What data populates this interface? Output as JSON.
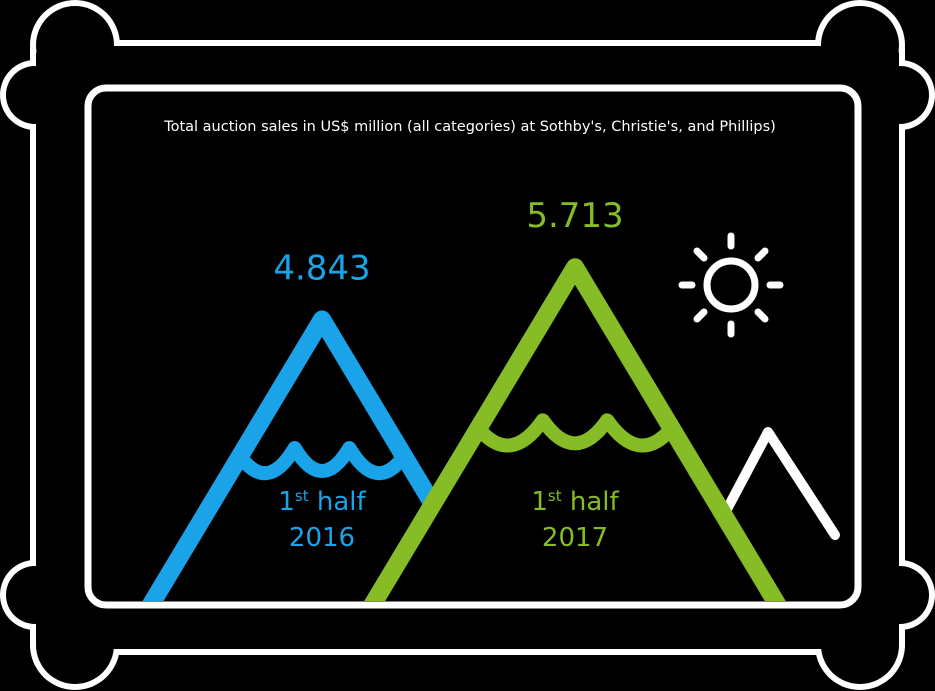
{
  "chart_data": {
    "type": "mountain",
    "title": "Total auction sales in US$ million (all categories) at Sothby's, Christie's, and Phillips)",
    "categories": [
      "1st half 2016",
      "1st half 2017"
    ],
    "series": [
      {
        "name": "1st half 2016",
        "color": "#1aa3e8",
        "values": [
          4.843,
          null
        ]
      },
      {
        "name": "1st half 2017",
        "color": "#86bc25",
        "values": [
          null,
          5.713
        ]
      }
    ]
  }
}
